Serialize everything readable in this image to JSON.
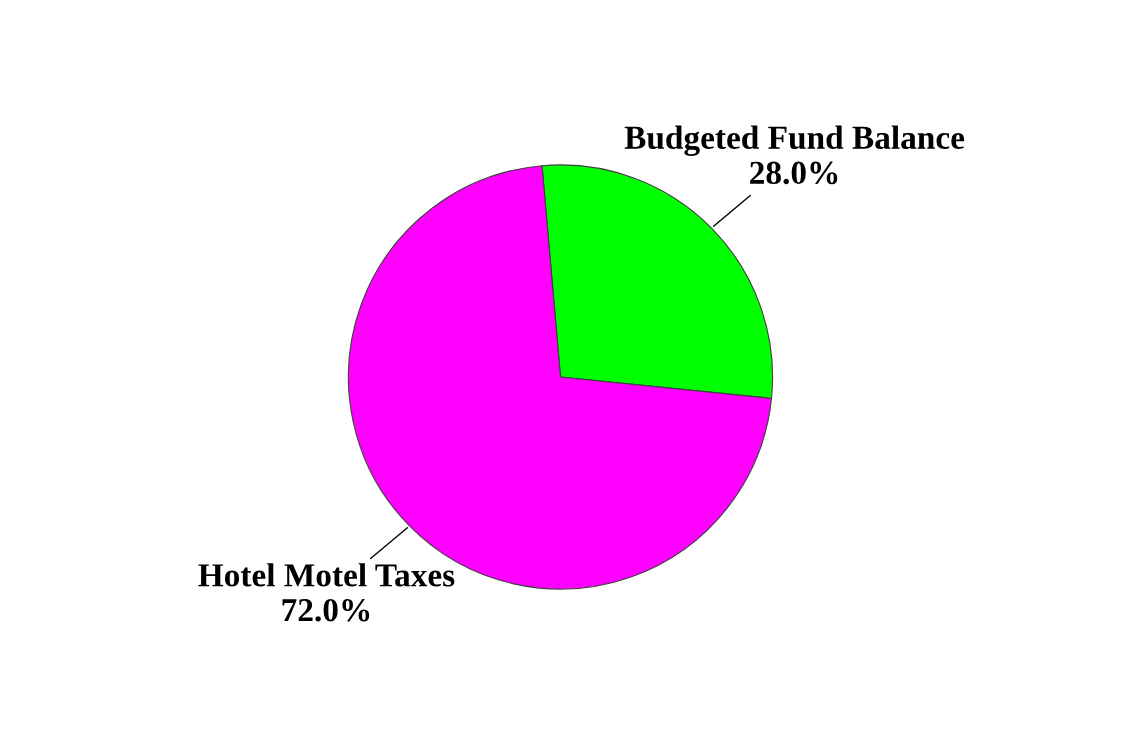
{
  "chart_data": {
    "type": "pie",
    "categories": [
      "Budgeted Fund Balance",
      "Hotel Motel Taxes"
    ],
    "values": [
      28.0,
      72.0
    ],
    "value_labels": [
      "28.0%",
      "72.0%"
    ],
    "colors": [
      "#00ff00",
      "#ff00ff"
    ],
    "legend": false
  }
}
